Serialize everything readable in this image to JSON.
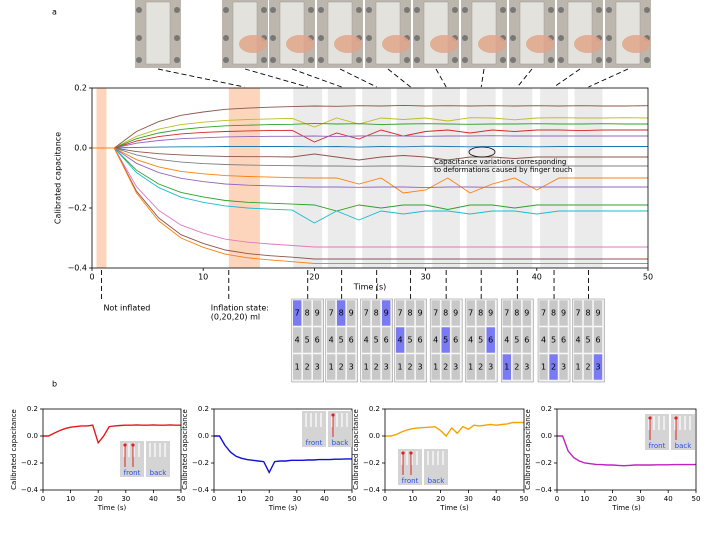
{
  "panel_labels": [
    "a",
    "b"
  ],
  "keypads": {
    "digits": [
      [
        "7",
        "8",
        "9"
      ],
      [
        "4",
        "5",
        "6"
      ],
      [
        "1",
        "2",
        "3"
      ]
    ],
    "active": [
      7,
      8,
      9,
      4,
      5,
      6,
      1,
      2,
      3
    ],
    "cell_color": "#c8c8c8",
    "active_color": "#7a7af2"
  },
  "chart_data": [
    {
      "type": "line",
      "xlabel": "Time (s)",
      "ylabel": "Calibrated capacitance",
      "xlim": [
        0,
        50
      ],
      "ylim": [
        -0.4,
        0.2
      ],
      "xticks": [
        0,
        10,
        20,
        30,
        40,
        50
      ],
      "yticks": [
        {
          "value": -0.4,
          "label": "−0.4"
        },
        {
          "value": -0.2,
          "label": "−0.2"
        },
        {
          "value": 0,
          "label": "0.0"
        },
        0.2
      ],
      "touch_windows": [
        [
          18.1,
          20.7
        ],
        [
          21.2,
          23.7
        ],
        [
          24.3,
          26.9
        ],
        [
          27.4,
          29.9
        ],
        [
          30.6,
          33.1
        ],
        [
          33.7,
          36.3
        ],
        [
          36.9,
          39.6
        ],
        [
          40.3,
          42.8
        ],
        [
          43.4,
          45.9
        ]
      ],
      "touch_window_color": "#ebebeb",
      "inflation_spans": [
        [
          0.4,
          1.3
        ],
        [
          12.3,
          15.1
        ]
      ],
      "inflation_color": "#fdd5bd",
      "annotations": {
        "touch": [
          "Capacitance variations corresponding",
          "to deformations caused by finger touch"
        ],
        "not_inflated": "Not inflated",
        "inflated": [
          "Inflation state:",
          "(0,20,20) ml"
        ]
      },
      "x": [
        0,
        2,
        4,
        6,
        8,
        10,
        12,
        14,
        16,
        18,
        20,
        22,
        24,
        26,
        28,
        30,
        32,
        34,
        36,
        38,
        40,
        42,
        44,
        46,
        48,
        50
      ],
      "series": [
        {
          "color": "#8c564b",
          "values": [
            0,
            0,
            0.055,
            0.088,
            0.109,
            0.12,
            0.129,
            0.133,
            0.136,
            0.138,
            0.14,
            0.139,
            0.141,
            0.14,
            0.142,
            0.14,
            0.141,
            0.14,
            0.141,
            0.14,
            0.141,
            0.14,
            0.141,
            0.14,
            0.14,
            0.141
          ]
        },
        {
          "color": "#bcbd22",
          "values": [
            0,
            0,
            0.039,
            0.063,
            0.078,
            0.086,
            0.092,
            0.095,
            0.097,
            0.099,
            0.07,
            0.1,
            0.08,
            0.1,
            0.095,
            0.1,
            0.09,
            0.101,
            0.1,
            0.094,
            0.1,
            0.101,
            0.1,
            0.1,
            0.101,
            0.1
          ]
        },
        {
          "color": "#2ca02c",
          "values": [
            0,
            0,
            0.031,
            0.05,
            0.062,
            0.069,
            0.074,
            0.076,
            0.078,
            0.079,
            0.082,
            0.08,
            0.081,
            0.078,
            0.08,
            0.081,
            0.08,
            0.079,
            0.08,
            0.08,
            0.081,
            0.08,
            0.08,
            0.081,
            0.08,
            0.08
          ]
        },
        {
          "color": "#d62728",
          "values": [
            0,
            0,
            0.023,
            0.038,
            0.047,
            0.052,
            0.055,
            0.057,
            0.058,
            0.059,
            0.02,
            0.05,
            0.03,
            0.06,
            0.04,
            0.055,
            0.06,
            0.05,
            0.06,
            0.055,
            0.06,
            0.06,
            0.058,
            0.06,
            0.06,
            0.06
          ]
        },
        {
          "color": "#9467bd",
          "values": [
            0,
            0,
            0.016,
            0.025,
            0.031,
            0.034,
            0.037,
            0.038,
            0.039,
            0.039,
            0.04,
            0.038,
            0.04,
            0.041,
            0.04,
            0.039,
            0.04,
            0.04,
            0.041,
            0.04,
            0.04,
            0.04,
            0.04,
            0.04,
            0.04,
            0.04
          ]
        },
        {
          "color": "#1f77b4",
          "values": [
            0,
            0,
            0.002,
            0.003,
            0.004,
            0.004,
            0.005,
            0.005,
            0.005,
            0.005,
            0.004,
            0.005,
            0.003,
            0.005,
            0.004,
            0.006,
            0.005,
            0.004,
            0.005,
            0.005,
            0.004,
            0.005,
            0.005,
            0.005,
            0.005,
            0.005
          ]
        },
        {
          "color": "#8c564b",
          "values": [
            0,
            0,
            -0.012,
            -0.019,
            -0.023,
            -0.026,
            -0.028,
            -0.029,
            -0.029,
            -0.03,
            -0.02,
            -0.03,
            -0.04,
            -0.03,
            -0.025,
            -0.03,
            -0.04,
            -0.03,
            -0.03,
            -0.035,
            -0.03,
            -0.03,
            -0.03,
            -0.03,
            -0.03,
            -0.03
          ]
        },
        {
          "color": "#7f7f7f",
          "values": [
            0,
            0,
            -0.023,
            -0.038,
            -0.047,
            -0.052,
            -0.055,
            -0.057,
            -0.058,
            -0.059,
            -0.06,
            -0.06,
            -0.061,
            -0.06,
            -0.06,
            -0.062,
            -0.06,
            -0.06,
            -0.061,
            -0.06,
            -0.06,
            -0.06,
            -0.06,
            -0.06,
            -0.06,
            -0.06
          ]
        },
        {
          "color": "#ff7f0e",
          "values": [
            0,
            0,
            -0.039,
            -0.063,
            -0.078,
            -0.086,
            -0.092,
            -0.095,
            -0.097,
            -0.099,
            -0.1,
            -0.1,
            -0.12,
            -0.1,
            -0.15,
            -0.14,
            -0.1,
            -0.15,
            -0.12,
            -0.1,
            -0.14,
            -0.1,
            -0.1,
            -0.1,
            -0.1,
            -0.1
          ]
        },
        {
          "color": "#9467bd",
          "values": [
            0,
            0,
            -0.051,
            -0.082,
            -0.101,
            -0.112,
            -0.12,
            -0.124,
            -0.126,
            -0.128,
            -0.13,
            -0.13,
            -0.131,
            -0.13,
            -0.13,
            -0.132,
            -0.13,
            -0.13,
            -0.131,
            -0.13,
            -0.13,
            -0.13,
            -0.13,
            -0.13,
            -0.13,
            -0.13
          ]
        },
        {
          "color": "#2ca02c",
          "values": [
            0,
            0,
            -0.074,
            -0.12,
            -0.148,
            -0.163,
            -0.175,
            -0.181,
            -0.184,
            -0.187,
            -0.19,
            -0.21,
            -0.19,
            -0.2,
            -0.19,
            -0.19,
            -0.205,
            -0.19,
            -0.19,
            -0.2,
            -0.19,
            -0.19,
            -0.19,
            -0.19,
            -0.19,
            -0.19
          ]
        },
        {
          "color": "#17becf",
          "values": [
            0,
            0,
            -0.082,
            -0.132,
            -0.164,
            -0.181,
            -0.193,
            -0.2,
            -0.204,
            -0.207,
            -0.25,
            -0.21,
            -0.24,
            -0.21,
            -0.22,
            -0.21,
            -0.21,
            -0.22,
            -0.21,
            -0.21,
            -0.22,
            -0.21,
            -0.21,
            -0.21,
            -0.21,
            -0.21
          ]
        },
        {
          "color": "#e377c2",
          "values": [
            0,
            0,
            -0.129,
            -0.208,
            -0.257,
            -0.284,
            -0.304,
            -0.314,
            -0.32,
            -0.325,
            -0.33,
            -0.33,
            -0.33,
            -0.33,
            -0.33,
            -0.33,
            -0.33,
            -0.33,
            -0.33,
            -0.33,
            -0.33,
            -0.33,
            -0.33,
            -0.33,
            -0.33,
            -0.33
          ]
        },
        {
          "color": "#8c564b",
          "values": [
            0,
            0,
            -0.144,
            -0.233,
            -0.289,
            -0.318,
            -0.34,
            -0.352,
            -0.359,
            -0.364,
            -0.37,
            -0.37,
            -0.37,
            -0.37,
            -0.37,
            -0.37,
            -0.37,
            -0.37,
            -0.37,
            -0.37,
            -0.37,
            -0.37,
            -0.37,
            -0.37,
            -0.37,
            -0.37
          ]
        },
        {
          "color": "#ff7f0e",
          "values": [
            0,
            0,
            -0.15,
            -0.243,
            -0.3,
            -0.331,
            -0.354,
            -0.366,
            -0.373,
            -0.379,
            -0.385,
            -0.385,
            -0.385,
            -0.385,
            -0.385,
            -0.385,
            -0.385,
            -0.385,
            -0.385,
            -0.385,
            -0.385,
            -0.385,
            -0.385,
            -0.385,
            -0.385,
            -0.385
          ]
        }
      ]
    },
    {
      "type": "line",
      "xlabel": "Time (s)",
      "ylabel": "Calibrated capacitance",
      "xlim": [
        0,
        50
      ],
      "ylim": [
        -0.4,
        0.2
      ],
      "xticks": [
        0,
        10,
        20,
        30,
        40,
        50
      ],
      "yticks": [
        {
          "value": -0.4,
          "label": "−0.4"
        },
        {
          "value": -0.2,
          "label": "−0.2"
        },
        {
          "value": 0,
          "label": "0.0"
        },
        0.2
      ],
      "inset_labels": [
        "front",
        "back"
      ],
      "x": [
        0,
        2,
        4,
        6,
        8,
        10,
        12,
        14,
        16,
        18,
        20,
        22,
        24,
        26,
        28,
        30,
        32,
        34,
        36,
        38,
        40,
        42,
        44,
        46,
        48,
        50
      ],
      "series": [
        {
          "color": "#e31a1c",
          "values": [
            0,
            0,
            0.02,
            0.04,
            0.055,
            0.065,
            0.07,
            0.075,
            0.075,
            0.08,
            -0.05,
            0,
            0.07,
            0.075,
            0.078,
            0.08,
            0.08,
            0.082,
            0.08,
            0.08,
            0.082,
            0.08,
            0.08,
            0.082,
            0.08,
            0.08
          ]
        }
      ]
    },
    {
      "type": "line",
      "xlabel": "Time (s)",
      "ylabel": "Calibrated capacitance",
      "xlim": [
        0,
        50
      ],
      "ylim": [
        -0.4,
        0.2
      ],
      "xticks": [
        0,
        10,
        20,
        30,
        40,
        50
      ],
      "yticks": [
        {
          "value": -0.4,
          "label": "−0.4"
        },
        {
          "value": -0.2,
          "label": "−0.2"
        },
        {
          "value": 0,
          "label": "0.0"
        },
        0.2
      ],
      "inset_labels": [
        "front",
        "back"
      ],
      "x": [
        0,
        2,
        4,
        6,
        8,
        10,
        12,
        14,
        16,
        18,
        20,
        22,
        24,
        26,
        28,
        30,
        32,
        34,
        36,
        38,
        40,
        42,
        44,
        46,
        48,
        50
      ],
      "series": [
        {
          "color": "#1010d8",
          "values": [
            0,
            0,
            -0.07,
            -0.12,
            -0.15,
            -0.165,
            -0.175,
            -0.18,
            -0.185,
            -0.19,
            -0.27,
            -0.19,
            -0.185,
            -0.185,
            -0.18,
            -0.18,
            -0.18,
            -0.178,
            -0.178,
            -0.175,
            -0.175,
            -0.175,
            -0.172,
            -0.172,
            -0.17,
            -0.17
          ]
        }
      ]
    },
    {
      "type": "line",
      "xlabel": "Time (s)",
      "ylabel": "Calibrated capacitance",
      "xlim": [
        0,
        50
      ],
      "ylim": [
        -0.4,
        0.2
      ],
      "xticks": [
        0,
        10,
        20,
        30,
        40,
        50
      ],
      "yticks": [
        {
          "value": -0.4,
          "label": "−0.4"
        },
        {
          "value": -0.2,
          "label": "−0.2"
        },
        {
          "value": 0,
          "label": "0.0"
        },
        0.2
      ],
      "inset_labels": [
        "front",
        "back"
      ],
      "x": [
        0,
        2,
        4,
        6,
        8,
        10,
        12,
        14,
        16,
        18,
        20,
        22,
        24,
        26,
        28,
        30,
        32,
        34,
        36,
        38,
        40,
        42,
        44,
        46,
        48,
        50
      ],
      "series": [
        {
          "color": "#f5a300",
          "values": [
            0,
            0,
            0.01,
            0.03,
            0.045,
            0.055,
            0.06,
            0.062,
            0.065,
            0.068,
            0.04,
            0,
            0.06,
            0.02,
            0.07,
            0.05,
            0.08,
            0.075,
            0.08,
            0.085,
            0.08,
            0.085,
            0.09,
            0.1,
            0.1,
            0.1
          ]
        }
      ]
    },
    {
      "type": "line",
      "xlabel": "Time (s)",
      "ylabel": "Calibrated capacitance",
      "xlim": [
        0,
        50
      ],
      "ylim": [
        -0.4,
        0.2
      ],
      "xticks": [
        0,
        10,
        20,
        30,
        40,
        50
      ],
      "yticks": [
        {
          "value": -0.4,
          "label": "−0.4"
        },
        {
          "value": -0.2,
          "label": "−0.2"
        },
        {
          "value": 0,
          "label": "0.0"
        },
        0.2
      ],
      "inset_labels": [
        "front",
        "back"
      ],
      "x": [
        0,
        2,
        4,
        6,
        8,
        10,
        12,
        14,
        16,
        18,
        20,
        22,
        24,
        26,
        28,
        30,
        32,
        34,
        36,
        38,
        40,
        42,
        44,
        46,
        48,
        50
      ],
      "series": [
        {
          "color": "#c020c0",
          "values": [
            0,
            0,
            -0.11,
            -0.16,
            -0.185,
            -0.2,
            -0.205,
            -0.21,
            -0.212,
            -0.215,
            -0.215,
            -0.218,
            -0.22,
            -0.218,
            -0.215,
            -0.215,
            -0.215,
            -0.215,
            -0.213,
            -0.213,
            -0.213,
            -0.212,
            -0.212,
            -0.212,
            -0.212,
            -0.212
          ]
        }
      ]
    }
  ]
}
